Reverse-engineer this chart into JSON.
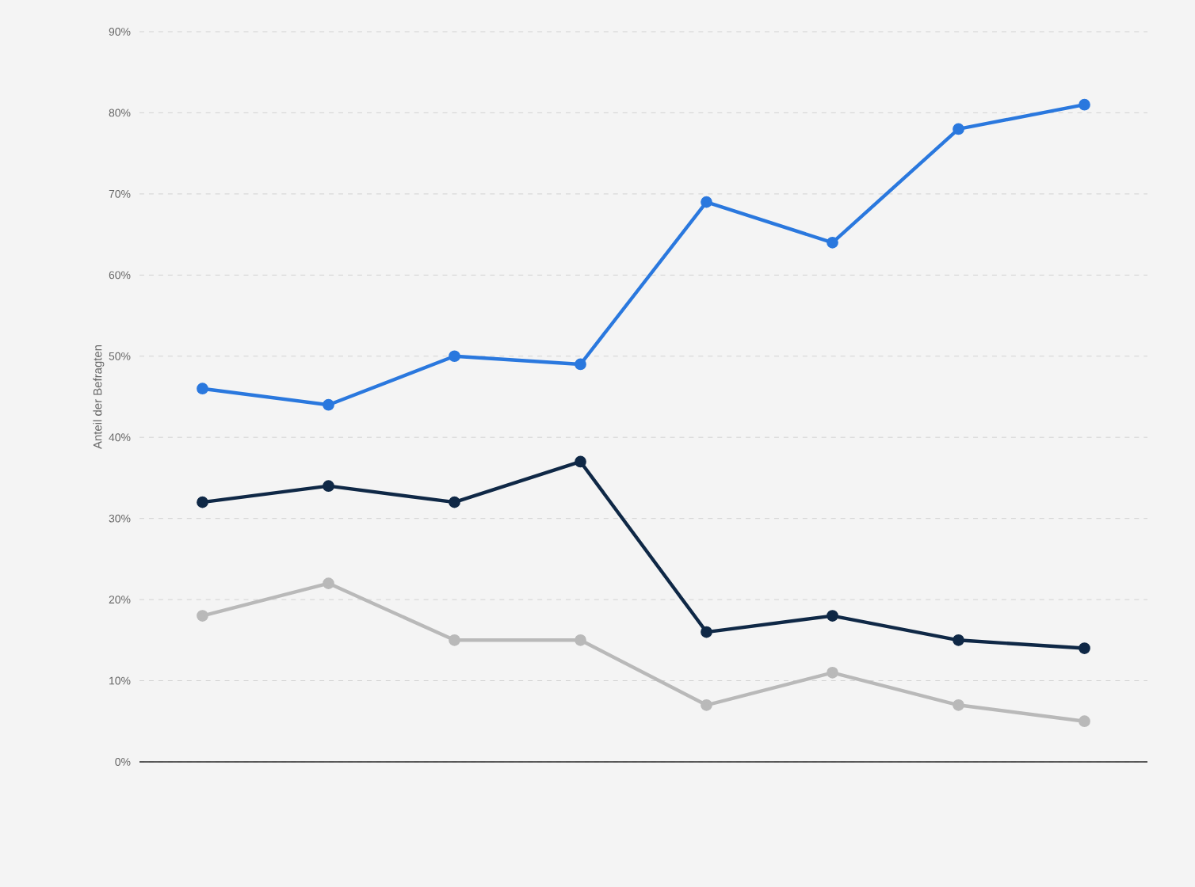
{
  "chart_data": {
    "type": "line",
    "ylabel": "Anteil der Befragten",
    "categories": [
      null,
      null,
      null,
      null,
      null,
      null,
      null,
      null
    ],
    "series": [
      {
        "color": "#2a78de",
        "values": [
          46,
          44,
          50,
          49,
          69,
          64,
          78,
          81
        ]
      },
      {
        "color": "#0f2846",
        "values": [
          32,
          34,
          32,
          37,
          16,
          18,
          15,
          14
        ]
      },
      {
        "color": "#b9b9b9",
        "values": [
          18,
          22,
          15,
          15,
          7,
          11,
          7,
          5
        ]
      }
    ],
    "ylim": [
      0,
      90
    ],
    "yticks": [
      {
        "value": 0,
        "label": "0%"
      },
      {
        "value": 10,
        "label": "10%"
      },
      {
        "value": 20,
        "label": "20%"
      },
      {
        "value": 30,
        "label": "30%"
      },
      {
        "value": 40,
        "label": "40%"
      },
      {
        "value": 50,
        "label": "50%"
      },
      {
        "value": 60,
        "label": "60%"
      },
      {
        "value": 70,
        "label": "70%"
      },
      {
        "value": 80,
        "label": "80%"
      },
      {
        "value": 90,
        "label": "90%"
      }
    ],
    "grid": "y",
    "marker": "circle",
    "line_style": "solid"
  }
}
